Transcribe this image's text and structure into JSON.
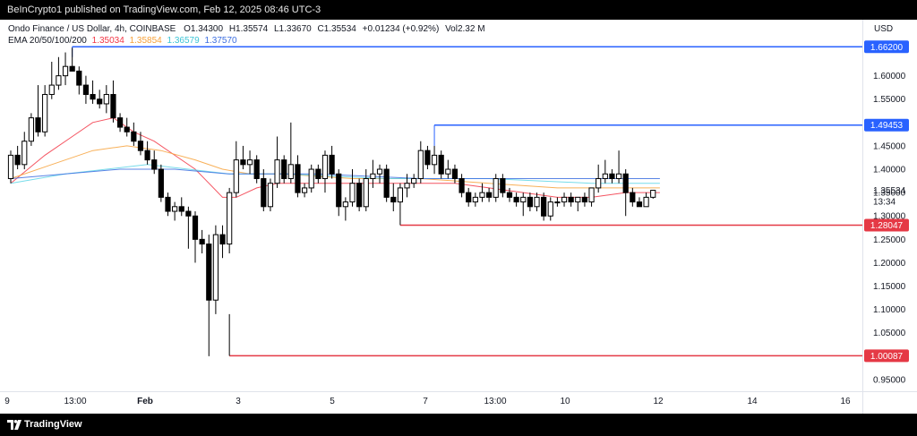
{
  "header": {
    "published_text": "BeInCrypto1 published on TradingView.com, Feb 12, 2025 08:46 UTC-3"
  },
  "legend": {
    "symbol": "Ondo Finance / US Dollar, 4h, COINBASE",
    "ohlc": {
      "o_label": "O",
      "o": "1.34300",
      "h_label": "H",
      "h": "1.35574",
      "l_label": "L",
      "l": "1.33670",
      "c_label": "C",
      "c": "1.35534",
      "change": "+0.01234 (+0.92%)",
      "vol_label": "Vol",
      "vol": "2.32 M"
    },
    "ema_label": "EMA 20/50/100/200",
    "ema_values": [
      "1.35034",
      "1.35854",
      "1.36579",
      "1.37570"
    ]
  },
  "axis": {
    "currency": "USD",
    "countdown": "13:34"
  },
  "footer": {
    "brand": "TradingView"
  },
  "colors": {
    "up_candle": "#ffffff",
    "down_candle": "#000000",
    "ema20": "#f23645",
    "ema50": "#f7a23b",
    "ema100": "#5fd6e6",
    "ema200": "#3c6ee0",
    "support": "#e53945",
    "resistance": "#2962ff"
  },
  "chart_data": {
    "type": "candlestick",
    "title": "Ondo Finance / US Dollar, 4h, COINBASE",
    "x_tick_labels": [
      "9",
      "13:00",
      "Feb",
      "3",
      "5",
      "7",
      "13:00",
      "10",
      "12",
      "14",
      "16"
    ],
    "y_tick_labels": [
      "0.95000",
      "1.00000",
      "1.05000",
      "1.10000",
      "1.15000",
      "1.20000",
      "1.25000",
      "1.30000",
      "1.35000",
      "1.40000",
      "1.45000",
      "1.50000",
      "1.55000",
      "1.60000"
    ],
    "ylim": [
      0.925,
      1.72
    ],
    "candles": [
      {
        "o": 1.38,
        "h": 1.44,
        "l": 1.37,
        "c": 1.43
      },
      {
        "o": 1.43,
        "h": 1.45,
        "l": 1.4,
        "c": 1.41
      },
      {
        "o": 1.41,
        "h": 1.48,
        "l": 1.4,
        "c": 1.46
      },
      {
        "o": 1.46,
        "h": 1.52,
        "l": 1.45,
        "c": 1.51
      },
      {
        "o": 1.51,
        "h": 1.58,
        "l": 1.47,
        "c": 1.48
      },
      {
        "o": 1.48,
        "h": 1.58,
        "l": 1.47,
        "c": 1.56
      },
      {
        "o": 1.56,
        "h": 1.63,
        "l": 1.55,
        "c": 1.58
      },
      {
        "o": 1.58,
        "h": 1.64,
        "l": 1.57,
        "c": 1.6
      },
      {
        "o": 1.6,
        "h": 1.65,
        "l": 1.58,
        "c": 1.62
      },
      {
        "o": 1.62,
        "h": 1.66,
        "l": 1.61,
        "c": 1.61
      },
      {
        "o": 1.61,
        "h": 1.62,
        "l": 1.56,
        "c": 1.58
      },
      {
        "o": 1.58,
        "h": 1.6,
        "l": 1.54,
        "c": 1.56
      },
      {
        "o": 1.56,
        "h": 1.59,
        "l": 1.54,
        "c": 1.55
      },
      {
        "o": 1.55,
        "h": 1.57,
        "l": 1.53,
        "c": 1.54
      },
      {
        "o": 1.54,
        "h": 1.58,
        "l": 1.52,
        "c": 1.56
      },
      {
        "o": 1.56,
        "h": 1.59,
        "l": 1.5,
        "c": 1.51
      },
      {
        "o": 1.51,
        "h": 1.52,
        "l": 1.48,
        "c": 1.49
      },
      {
        "o": 1.49,
        "h": 1.51,
        "l": 1.47,
        "c": 1.48
      },
      {
        "o": 1.48,
        "h": 1.5,
        "l": 1.45,
        "c": 1.46
      },
      {
        "o": 1.46,
        "h": 1.48,
        "l": 1.43,
        "c": 1.44
      },
      {
        "o": 1.44,
        "h": 1.46,
        "l": 1.41,
        "c": 1.42
      },
      {
        "o": 1.42,
        "h": 1.44,
        "l": 1.39,
        "c": 1.4
      },
      {
        "o": 1.4,
        "h": 1.41,
        "l": 1.33,
        "c": 1.34
      },
      {
        "o": 1.34,
        "h": 1.35,
        "l": 1.3,
        "c": 1.31
      },
      {
        "o": 1.31,
        "h": 1.33,
        "l": 1.29,
        "c": 1.32
      },
      {
        "o": 1.32,
        "h": 1.34,
        "l": 1.3,
        "c": 1.31
      },
      {
        "o": 1.31,
        "h": 1.32,
        "l": 1.23,
        "c": 1.3
      },
      {
        "o": 1.3,
        "h": 1.31,
        "l": 1.2,
        "c": 1.25
      },
      {
        "o": 1.25,
        "h": 1.27,
        "l": 1.22,
        "c": 1.24
      },
      {
        "o": 1.24,
        "h": 1.26,
        "l": 1.0,
        "c": 1.12
      },
      {
        "o": 1.12,
        "h": 1.28,
        "l": 1.09,
        "c": 1.26
      },
      {
        "o": 1.26,
        "h": 1.28,
        "l": 1.21,
        "c": 1.24
      },
      {
        "o": 1.24,
        "h": 1.36,
        "l": 1.22,
        "c": 1.35
      },
      {
        "o": 1.35,
        "h": 1.46,
        "l": 1.34,
        "c": 1.42
      },
      {
        "o": 1.42,
        "h": 1.45,
        "l": 1.4,
        "c": 1.41
      },
      {
        "o": 1.41,
        "h": 1.44,
        "l": 1.39,
        "c": 1.42
      },
      {
        "o": 1.42,
        "h": 1.43,
        "l": 1.37,
        "c": 1.38
      },
      {
        "o": 1.38,
        "h": 1.4,
        "l": 1.31,
        "c": 1.32
      },
      {
        "o": 1.32,
        "h": 1.38,
        "l": 1.31,
        "c": 1.37
      },
      {
        "o": 1.37,
        "h": 1.47,
        "l": 1.36,
        "c": 1.42
      },
      {
        "o": 1.42,
        "h": 1.43,
        "l": 1.37,
        "c": 1.38
      },
      {
        "o": 1.38,
        "h": 1.5,
        "l": 1.37,
        "c": 1.41
      },
      {
        "o": 1.41,
        "h": 1.43,
        "l": 1.34,
        "c": 1.35
      },
      {
        "o": 1.35,
        "h": 1.37,
        "l": 1.34,
        "c": 1.36
      },
      {
        "o": 1.36,
        "h": 1.41,
        "l": 1.35,
        "c": 1.4
      },
      {
        "o": 1.4,
        "h": 1.41,
        "l": 1.37,
        "c": 1.38
      },
      {
        "o": 1.38,
        "h": 1.44,
        "l": 1.35,
        "c": 1.43
      },
      {
        "o": 1.43,
        "h": 1.45,
        "l": 1.38,
        "c": 1.39
      },
      {
        "o": 1.39,
        "h": 1.4,
        "l": 1.3,
        "c": 1.32
      },
      {
        "o": 1.32,
        "h": 1.34,
        "l": 1.29,
        "c": 1.33
      },
      {
        "o": 1.33,
        "h": 1.4,
        "l": 1.32,
        "c": 1.37
      },
      {
        "o": 1.37,
        "h": 1.38,
        "l": 1.31,
        "c": 1.32
      },
      {
        "o": 1.32,
        "h": 1.4,
        "l": 1.31,
        "c": 1.38
      },
      {
        "o": 1.38,
        "h": 1.42,
        "l": 1.36,
        "c": 1.39
      },
      {
        "o": 1.39,
        "h": 1.41,
        "l": 1.37,
        "c": 1.4
      },
      {
        "o": 1.4,
        "h": 1.41,
        "l": 1.33,
        "c": 1.34
      },
      {
        "o": 1.34,
        "h": 1.37,
        "l": 1.31,
        "c": 1.33
      },
      {
        "o": 1.33,
        "h": 1.37,
        "l": 1.31,
        "c": 1.36
      },
      {
        "o": 1.36,
        "h": 1.39,
        "l": 1.34,
        "c": 1.37
      },
      {
        "o": 1.37,
        "h": 1.39,
        "l": 1.36,
        "c": 1.38
      },
      {
        "o": 1.38,
        "h": 1.46,
        "l": 1.37,
        "c": 1.44
      },
      {
        "o": 1.44,
        "h": 1.45,
        "l": 1.4,
        "c": 1.41
      },
      {
        "o": 1.41,
        "h": 1.45,
        "l": 1.39,
        "c": 1.43
      },
      {
        "o": 1.43,
        "h": 1.44,
        "l": 1.38,
        "c": 1.39
      },
      {
        "o": 1.39,
        "h": 1.42,
        "l": 1.38,
        "c": 1.4
      },
      {
        "o": 1.4,
        "h": 1.41,
        "l": 1.37,
        "c": 1.38
      },
      {
        "o": 1.38,
        "h": 1.39,
        "l": 1.34,
        "c": 1.35
      },
      {
        "o": 1.35,
        "h": 1.36,
        "l": 1.32,
        "c": 1.33
      },
      {
        "o": 1.33,
        "h": 1.35,
        "l": 1.32,
        "c": 1.34
      },
      {
        "o": 1.34,
        "h": 1.37,
        "l": 1.33,
        "c": 1.35
      },
      {
        "o": 1.35,
        "h": 1.36,
        "l": 1.33,
        "c": 1.34
      },
      {
        "o": 1.34,
        "h": 1.39,
        "l": 1.33,
        "c": 1.38
      },
      {
        "o": 1.38,
        "h": 1.39,
        "l": 1.34,
        "c": 1.35
      },
      {
        "o": 1.35,
        "h": 1.36,
        "l": 1.33,
        "c": 1.34
      },
      {
        "o": 1.34,
        "h": 1.35,
        "l": 1.32,
        "c": 1.33
      },
      {
        "o": 1.33,
        "h": 1.35,
        "l": 1.3,
        "c": 1.34
      },
      {
        "o": 1.34,
        "h": 1.35,
        "l": 1.31,
        "c": 1.32
      },
      {
        "o": 1.32,
        "h": 1.35,
        "l": 1.31,
        "c": 1.34
      },
      {
        "o": 1.34,
        "h": 1.35,
        "l": 1.29,
        "c": 1.3
      },
      {
        "o": 1.3,
        "h": 1.34,
        "l": 1.29,
        "c": 1.33
      },
      {
        "o": 1.33,
        "h": 1.34,
        "l": 1.32,
        "c": 1.33
      },
      {
        "o": 1.33,
        "h": 1.35,
        "l": 1.32,
        "c": 1.34
      },
      {
        "o": 1.34,
        "h": 1.35,
        "l": 1.32,
        "c": 1.33
      },
      {
        "o": 1.33,
        "h": 1.34,
        "l": 1.31,
        "c": 1.34
      },
      {
        "o": 1.34,
        "h": 1.35,
        "l": 1.32,
        "c": 1.33
      },
      {
        "o": 1.33,
        "h": 1.36,
        "l": 1.32,
        "c": 1.36
      },
      {
        "o": 1.36,
        "h": 1.41,
        "l": 1.35,
        "c": 1.38
      },
      {
        "o": 1.38,
        "h": 1.42,
        "l": 1.37,
        "c": 1.39
      },
      {
        "o": 1.39,
        "h": 1.4,
        "l": 1.37,
        "c": 1.38
      },
      {
        "o": 1.38,
        "h": 1.44,
        "l": 1.37,
        "c": 1.39
      },
      {
        "o": 1.39,
        "h": 1.4,
        "l": 1.3,
        "c": 1.35
      },
      {
        "o": 1.35,
        "h": 1.36,
        "l": 1.32,
        "c": 1.33
      },
      {
        "o": 1.33,
        "h": 1.34,
        "l": 1.32,
        "c": 1.32
      },
      {
        "o": 1.32,
        "h": 1.35,
        "l": 1.32,
        "c": 1.34
      },
      {
        "o": 1.34,
        "h": 1.356,
        "l": 1.337,
        "c": 1.355
      }
    ],
    "ema": [
      {
        "name": "EMA 20",
        "points": [
          [
            0,
            1.37
          ],
          [
            5,
            1.43
          ],
          [
            9,
            1.47
          ],
          [
            12,
            1.5
          ],
          [
            15,
            1.51
          ],
          [
            18,
            1.48
          ],
          [
            21,
            1.46
          ],
          [
            24,
            1.43
          ],
          [
            27,
            1.4
          ],
          [
            29,
            1.37
          ],
          [
            31,
            1.34
          ],
          [
            33,
            1.34
          ],
          [
            36,
            1.36
          ],
          [
            39,
            1.37
          ],
          [
            42,
            1.37
          ],
          [
            45,
            1.37
          ],
          [
            50,
            1.37
          ],
          [
            55,
            1.37
          ],
          [
            60,
            1.37
          ],
          [
            65,
            1.37
          ],
          [
            70,
            1.36
          ],
          [
            75,
            1.35
          ],
          [
            80,
            1.34
          ],
          [
            85,
            1.34
          ],
          [
            90,
            1.35
          ],
          [
            95,
            1.35
          ]
        ]
      },
      {
        "name": "EMA 50",
        "points": [
          [
            0,
            1.38
          ],
          [
            6,
            1.41
          ],
          [
            12,
            1.44
          ],
          [
            17,
            1.45
          ],
          [
            22,
            1.44
          ],
          [
            27,
            1.42
          ],
          [
            31,
            1.4
          ],
          [
            35,
            1.39
          ],
          [
            40,
            1.39
          ],
          [
            50,
            1.38
          ],
          [
            60,
            1.38
          ],
          [
            70,
            1.37
          ],
          [
            80,
            1.36
          ],
          [
            90,
            1.36
          ],
          [
            95,
            1.36
          ]
        ]
      },
      {
        "name": "EMA 100",
        "points": [
          [
            0,
            1.37
          ],
          [
            8,
            1.39
          ],
          [
            14,
            1.4
          ],
          [
            20,
            1.41
          ],
          [
            26,
            1.4
          ],
          [
            32,
            1.39
          ],
          [
            40,
            1.39
          ],
          [
            55,
            1.38
          ],
          [
            70,
            1.38
          ],
          [
            85,
            1.37
          ],
          [
            95,
            1.37
          ]
        ]
      },
      {
        "name": "EMA 200",
        "points": [
          [
            0,
            1.38
          ],
          [
            8,
            1.39
          ],
          [
            16,
            1.4
          ],
          [
            24,
            1.4
          ],
          [
            32,
            1.39
          ],
          [
            45,
            1.39
          ],
          [
            60,
            1.38
          ],
          [
            75,
            1.38
          ],
          [
            95,
            1.38
          ]
        ]
      }
    ],
    "levels": [
      {
        "label": "1.66200",
        "value": 1.662,
        "type": "resistance",
        "from_index": 9
      },
      {
        "label": "1.49453",
        "value": 1.49453,
        "type": "resistance",
        "from_index": 62
      },
      {
        "label": "1.28047",
        "value": 1.28047,
        "type": "support",
        "from_index": 57
      },
      {
        "label": "1.00087",
        "value": 1.00087,
        "type": "support",
        "from_index": 32
      }
    ],
    "last_price": {
      "label": "1.35534",
      "value": 1.35534
    }
  }
}
